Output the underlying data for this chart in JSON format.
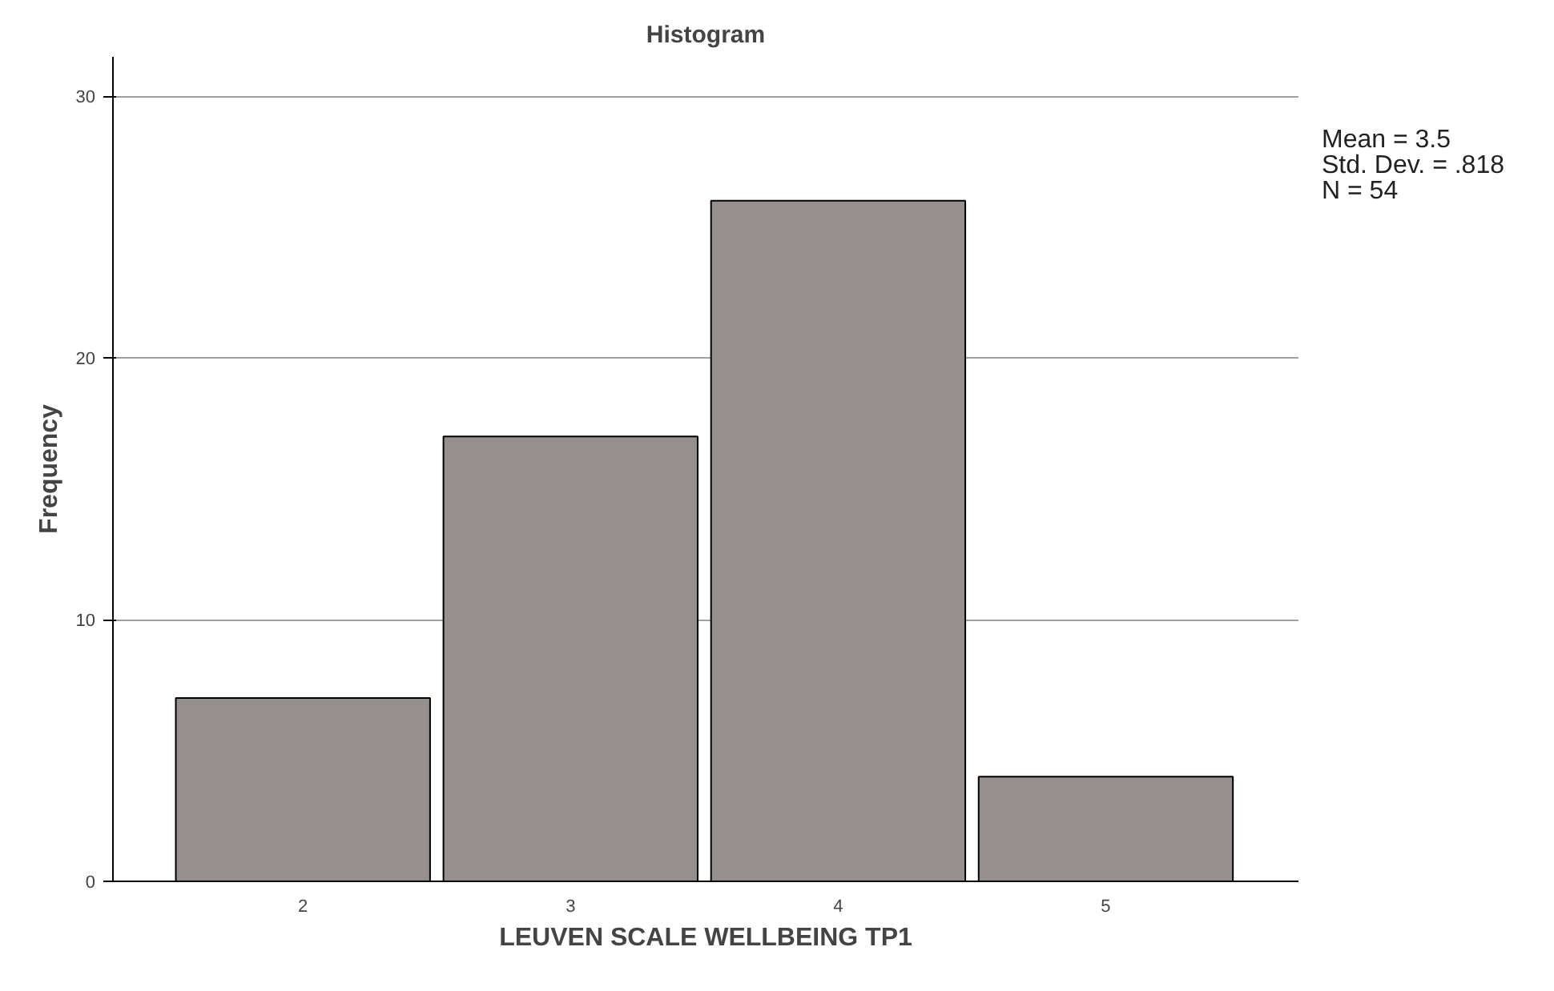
{
  "chart_data": {
    "type": "bar",
    "title": "Histogram",
    "xlabel": "LEUVEN SCALE WELLBEING TP1",
    "ylabel": "Frequency",
    "x": [
      2,
      3,
      4,
      5
    ],
    "values": [
      7,
      17,
      26,
      4
    ],
    "color": "#958f8d",
    "xlim": [
      1.29,
      5.72
    ],
    "xticks": [
      2,
      3,
      4,
      5
    ],
    "ylim": [
      0,
      31.5
    ],
    "yticks": [
      0,
      10,
      20,
      30
    ],
    "grid": "y",
    "annotations": [
      "Mean = 3.5",
      "Std. Dev. = .818",
      "N = 54"
    ]
  }
}
